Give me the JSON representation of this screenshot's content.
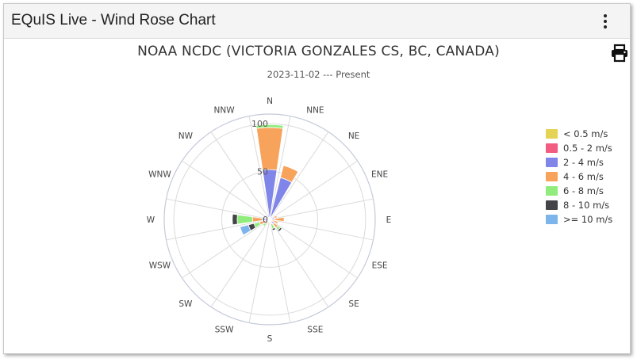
{
  "window": {
    "title": "EQuIS Live - Wind Rose Chart",
    "menu_icon": "kebab-menu-icon",
    "print_icon": "print-icon"
  },
  "chart_data": {
    "type": "windrose",
    "title": "NOAA NCDC (VICTORIA GONZALES CS, BC, CANADA)",
    "subtitle": "2023-11-02 --- Present",
    "directions": [
      "N",
      "NNE",
      "NE",
      "ENE",
      "E",
      "ESE",
      "SE",
      "SSE",
      "S",
      "SSW",
      "SW",
      "WSW",
      "W",
      "WNW",
      "NW",
      "NNW"
    ],
    "radial_ticks": [
      "0",
      "50",
      "100"
    ],
    "rmax": 110,
    "series": [
      {
        "name": "< 0.5 m/s",
        "color": "#e4d354",
        "values": [
          0,
          0,
          0,
          0,
          0,
          0,
          0,
          0,
          0,
          0,
          0,
          0,
          0,
          0,
          0,
          0
        ]
      },
      {
        "name": "0.5 - 2 m/s",
        "color": "#f15c80",
        "values": [
          0,
          0,
          0,
          0,
          0,
          0,
          0,
          0,
          0,
          0,
          0,
          0,
          0,
          0,
          0,
          0
        ]
      },
      {
        "name": "2 - 4 m/s",
        "color": "#8085e9",
        "values": [
          52,
          45,
          4,
          5,
          5,
          3,
          6,
          4,
          3,
          3,
          3,
          5,
          8,
          2,
          4,
          5
        ]
      },
      {
        "name": "4 - 6 m/s",
        "color": "#f7a35c",
        "values": [
          44,
          13,
          0,
          3,
          10,
          6,
          5,
          1,
          0,
          0,
          3,
          6,
          10,
          0,
          0,
          0
        ]
      },
      {
        "name": "6 - 8 m/s",
        "color": "#90ed7d",
        "values": [
          3,
          0,
          0,
          0,
          0,
          0,
          3,
          5,
          0,
          0,
          3,
          6,
          16,
          0,
          0,
          0
        ]
      },
      {
        "name": "8 - 10 m/s",
        "color": "#434348",
        "values": [
          0,
          0,
          0,
          0,
          0,
          0,
          2,
          2,
          0,
          0,
          0,
          6,
          5,
          0,
          0,
          0
        ]
      },
      {
        "name": ">= 10 m/s",
        "color": "#7cb5ec",
        "values": [
          0,
          0,
          0,
          0,
          0,
          0,
          0,
          0,
          0,
          0,
          0,
          9,
          0,
          0,
          0,
          0
        ]
      }
    ]
  }
}
